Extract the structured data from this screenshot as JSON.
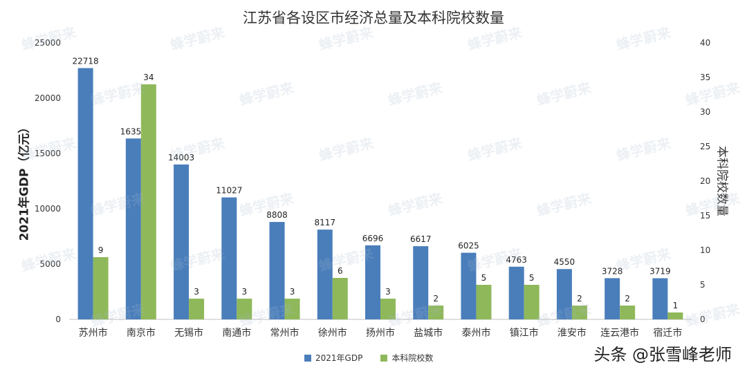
{
  "chart_data": {
    "type": "bar",
    "title": "江苏省各设区市经济总量及本科院校数量",
    "ylabel": "2021年GDP（亿元）",
    "y2label": "本科院校数量",
    "ylim": [
      0,
      25000
    ],
    "y2lim": [
      0,
      40
    ],
    "yticks": [
      "0",
      "5000",
      "10000",
      "15000",
      "20000",
      "25000"
    ],
    "y2ticks": [
      "0",
      "5",
      "10",
      "15",
      "20",
      "25",
      "30",
      "35",
      "40"
    ],
    "categories": [
      "苏州市",
      "南京市",
      "无锡市",
      "南通市",
      "常州市",
      "徐州市",
      "扬州市",
      "盐城市",
      "泰州市",
      "镇江市",
      "淮安市",
      "连云港市",
      "宿迁市"
    ],
    "series": [
      {
        "name": "2021年GDP",
        "axis": "left",
        "color": "#4a7ebb",
        "values": [
          22718,
          16355,
          14003,
          11027,
          8808,
          8117,
          6696,
          6617,
          6025,
          4763,
          4550,
          3728,
          3719
        ],
        "labels": [
          "22718",
          "16355",
          "14003",
          "11027",
          "8808",
          "8117",
          "6696",
          "6617",
          "6025",
          "4763",
          "4550",
          "3728",
          "3719"
        ]
      },
      {
        "name": "本科院校数",
        "axis": "right",
        "color": "#8fb85a",
        "values": [
          9,
          34,
          3,
          3,
          3,
          6,
          3,
          2,
          5,
          5,
          2,
          2,
          1
        ],
        "labels": [
          "9",
          "34",
          "3",
          "3",
          "3",
          "6",
          "3",
          "2",
          "5",
          "5",
          "2",
          "2",
          "1"
        ]
      }
    ],
    "grid": false,
    "legend": "bottom"
  },
  "watermark": {
    "text": "蜂学蔚来",
    "credit": "头条 @张雪峰老师"
  }
}
